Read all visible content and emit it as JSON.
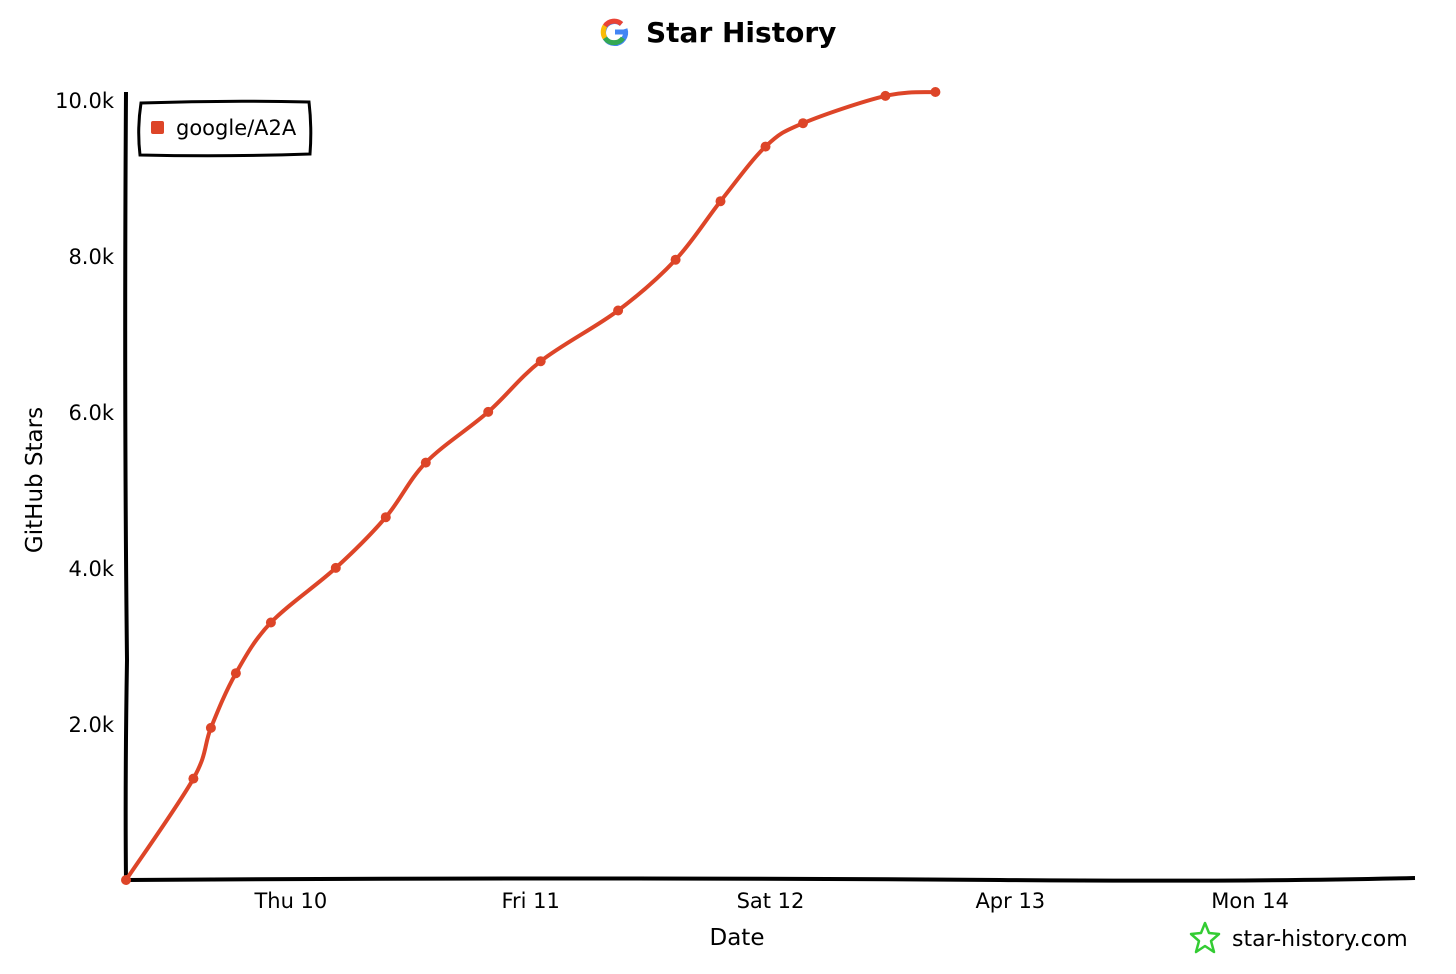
{
  "chart_data": {
    "type": "line",
    "title": "Star History",
    "logo_icon": "google-g-logo",
    "xlabel": "Date",
    "ylabel": "GitHub Stars",
    "x_ticks": [
      "Thu 10",
      "Fri 11",
      "Sat 12",
      "Apr 13",
      "Mon 14"
    ],
    "y_ticks": [
      "2.0k",
      "4.0k",
      "6.0k",
      "8.0k",
      "10.0k"
    ],
    "y_tick_values": [
      2000,
      4000,
      6000,
      8000,
      10000
    ],
    "xlim": [
      "2025-04-09T19:30",
      "2025-04-15T04:30"
    ],
    "ylim": [
      0,
      10100
    ],
    "grid": false,
    "legend_position": "top-left",
    "series": [
      {
        "name": "google/A2A",
        "color": "#dd4528",
        "points": [
          {
            "x": "2025-04-09T19:30",
            "y": 0
          },
          {
            "x": "2025-04-10T02:15",
            "y": 1300
          },
          {
            "x": "2025-04-10T04:00",
            "y": 1950
          },
          {
            "x": "2025-04-10T06:30",
            "y": 2650
          },
          {
            "x": "2025-04-10T10:00",
            "y": 3300
          },
          {
            "x": "2025-04-10T16:30",
            "y": 4000
          },
          {
            "x": "2025-04-10T21:30",
            "y": 4650
          },
          {
            "x": "2025-04-11T01:30",
            "y": 5350
          },
          {
            "x": "2025-04-11T07:45",
            "y": 6000
          },
          {
            "x": "2025-04-11T13:00",
            "y": 6650
          },
          {
            "x": "2025-04-11T20:45",
            "y": 7300
          },
          {
            "x": "2025-04-12T02:30",
            "y": 7950
          },
          {
            "x": "2025-04-12T07:00",
            "y": 8700
          },
          {
            "x": "2025-04-12T11:30",
            "y": 9400
          },
          {
            "x": "2025-04-12T15:15",
            "y": 9700
          },
          {
            "x": "2025-04-12T23:30",
            "y": 10050
          },
          {
            "x": "2025-04-13T04:30",
            "y": 10100
          }
        ]
      }
    ]
  },
  "watermark": {
    "text": "star-history.com",
    "icon": "star-history-logo-icon",
    "color": "#33cc33"
  }
}
